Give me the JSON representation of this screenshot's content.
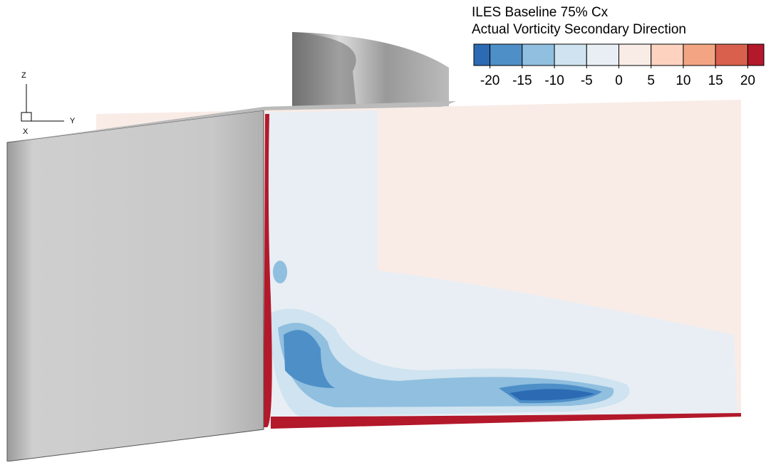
{
  "legend": {
    "title": "ILES Baseline 75% Cx",
    "subtitle": "Actual Vorticity Secondary Direction",
    "colorbar": {
      "range": [
        -22.5,
        22.5
      ],
      "ticks": [
        -20,
        -15,
        -10,
        -5,
        0,
        5,
        10,
        15,
        20
      ],
      "colors": [
        "#2c6bb3",
        "#4e8fc8",
        "#90bfdf",
        "#cfe3f0",
        "#e8eef4",
        "#f9ece7",
        "#fdd2bf",
        "#f3a583",
        "#d8604d",
        "#b3182b"
      ]
    }
  },
  "axes_triad": {
    "z": "Z",
    "y": "Y",
    "x": "X"
  }
}
